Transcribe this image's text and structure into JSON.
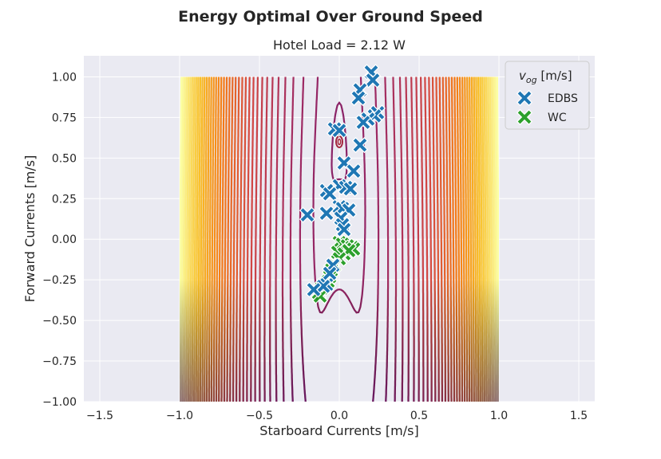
{
  "chart_data": {
    "type": "contour+scatter",
    "title": "Energy Optimal Over Ground Speed",
    "subtitle": "Hotel Load = 2.12 W",
    "xlabel": "Starboard Currents [m/s]",
    "ylabel": "Forward Currents [m/s]",
    "xlim": [
      -1.6,
      1.6
    ],
    "ylim": [
      -1.0,
      1.13
    ],
    "xticks": [
      "−1.5",
      "−1.0",
      "−0.5",
      "0.0",
      "0.5",
      "1.0",
      "1.5"
    ],
    "xtick_values": [
      -1.5,
      -1.0,
      -0.5,
      0.0,
      0.5,
      1.0,
      1.5
    ],
    "yticks": [
      "−1.00",
      "−0.75",
      "−0.50",
      "−0.25",
      "0.00",
      "0.25",
      "0.50",
      "0.75",
      "1.00"
    ],
    "ytick_values": [
      -1.0,
      -0.75,
      -0.5,
      -0.25,
      0.0,
      0.25,
      0.5,
      0.75,
      1.0
    ],
    "grid": true,
    "background": "#eaeaf2",
    "contour": {
      "domain_x": [
        -1.0,
        1.0
      ],
      "domain_y": [
        -1.0,
        1.0
      ],
      "colormap": "inferno",
      "minimum": [
        0.0,
        0.6
      ],
      "levels": 40
    },
    "legend": {
      "title": "v_og [m/s]",
      "title_main": "v",
      "title_sub": "og",
      "title_unit": " [m/s]",
      "position": "top-right"
    },
    "series": [
      {
        "name": "EDBS",
        "color": "#1f77b4",
        "points": [
          [
            0.2,
            1.03
          ],
          [
            0.21,
            0.98
          ],
          [
            0.13,
            0.92
          ],
          [
            0.12,
            0.87
          ],
          [
            0.24,
            0.78
          ],
          [
            0.22,
            0.76
          ],
          [
            0.18,
            0.74
          ],
          [
            0.15,
            0.72
          ],
          [
            -0.03,
            0.68
          ],
          [
            0.0,
            0.67
          ],
          [
            0.13,
            0.58
          ],
          [
            0.03,
            0.47
          ],
          [
            0.09,
            0.42
          ],
          [
            0.0,
            0.33
          ],
          [
            -0.08,
            0.3
          ],
          [
            -0.06,
            0.28
          ],
          [
            0.04,
            0.32
          ],
          [
            0.07,
            0.31
          ],
          [
            -0.2,
            0.15
          ],
          [
            -0.08,
            0.16
          ],
          [
            0.0,
            0.2
          ],
          [
            0.02,
            0.19
          ],
          [
            0.06,
            0.18
          ],
          [
            0.01,
            0.13
          ],
          [
            0.02,
            0.09
          ],
          [
            0.03,
            0.06
          ],
          [
            -0.04,
            -0.16
          ],
          [
            -0.06,
            -0.21
          ],
          [
            -0.08,
            -0.28
          ],
          [
            -0.1,
            -0.29
          ],
          [
            -0.16,
            -0.31
          ]
        ]
      },
      {
        "name": "WC",
        "color": "#2ca02c",
        "points": [
          [
            0.0,
            -0.02
          ],
          [
            0.02,
            -0.03
          ],
          [
            0.05,
            -0.04
          ],
          [
            0.08,
            -0.05
          ],
          [
            0.09,
            -0.06
          ],
          [
            -0.01,
            -0.08
          ],
          [
            0.03,
            -0.09
          ],
          [
            0.06,
            -0.07
          ],
          [
            0.0,
            -0.12
          ],
          [
            -0.03,
            -0.16
          ],
          [
            -0.05,
            -0.19
          ],
          [
            -0.06,
            -0.23
          ],
          [
            -0.07,
            -0.26
          ],
          [
            -0.09,
            -0.28
          ],
          [
            -0.11,
            -0.3
          ],
          [
            -0.13,
            -0.33
          ],
          [
            -0.12,
            -0.35
          ]
        ]
      }
    ]
  }
}
